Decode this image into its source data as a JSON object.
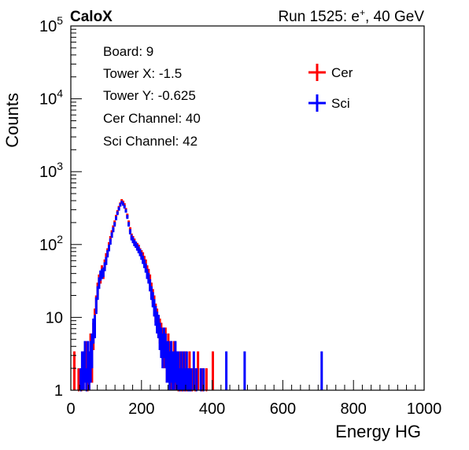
{
  "header": {
    "brand": "CaloX",
    "run_prefix": "Run 1525: e",
    "run_particle_sup": "+",
    "run_suffix": ", 40 GeV"
  },
  "info_box": {
    "lines": [
      "Board: 9",
      "Tower X: -1.5",
      "Tower Y: -0.625",
      "Cer Channel: 40",
      "Sci Channel: 42"
    ]
  },
  "colors": {
    "cer": "#ff0000",
    "sci": "#0000ff",
    "axis": "#000000"
  },
  "chart_data": {
    "type": "histogram",
    "xlabel": "Energy HG",
    "ylabel": "Counts",
    "xlim": [
      0,
      1000
    ],
    "ylim": [
      1,
      100000
    ],
    "yscale": "log",
    "x_ticks": [
      0,
      200,
      400,
      600,
      800,
      1000
    ],
    "x_tick_labels": [
      "0",
      "200",
      "400",
      "600",
      "800",
      "1000"
    ],
    "y_tick_labels": [
      {
        "base": "1",
        "exp": ""
      },
      {
        "base": "10",
        "exp": ""
      },
      {
        "base": "10",
        "exp": "2"
      },
      {
        "base": "10",
        "exp": "3"
      },
      {
        "base": "10",
        "exp": "4"
      },
      {
        "base": "10",
        "exp": "5"
      }
    ],
    "legend": {
      "position": "top-right",
      "entries": [
        {
          "name": "Cer",
          "color": "#ff0000"
        },
        {
          "name": "Sci",
          "color": "#0000ff"
        }
      ]
    },
    "series": [
      {
        "name": "Cer",
        "color": "#ff0000",
        "points": [
          [
            10,
            2
          ],
          [
            22,
            1
          ],
          [
            30,
            1
          ],
          [
            36,
            2
          ],
          [
            42,
            3
          ],
          [
            48,
            1
          ],
          [
            52,
            2
          ],
          [
            56,
            4
          ],
          [
            60,
            3
          ],
          [
            64,
            6
          ],
          [
            68,
            10
          ],
          [
            72,
            16
          ],
          [
            76,
            25
          ],
          [
            80,
            33
          ],
          [
            84,
            35
          ],
          [
            88,
            45
          ],
          [
            92,
            40
          ],
          [
            96,
            55
          ],
          [
            100,
            68
          ],
          [
            104,
            80
          ],
          [
            108,
            98
          ],
          [
            112,
            120
          ],
          [
            116,
            145
          ],
          [
            120,
            170
          ],
          [
            124,
            200
          ],
          [
            128,
            240
          ],
          [
            132,
            280
          ],
          [
            136,
            320
          ],
          [
            140,
            360
          ],
          [
            144,
            400
          ],
          [
            148,
            380
          ],
          [
            152,
            350
          ],
          [
            156,
            300
          ],
          [
            160,
            250
          ],
          [
            164,
            200
          ],
          [
            168,
            160
          ],
          [
            172,
            130
          ],
          [
            176,
            120
          ],
          [
            180,
            110
          ],
          [
            184,
            100
          ],
          [
            188,
            95
          ],
          [
            192,
            90
          ],
          [
            196,
            80
          ],
          [
            200,
            75
          ],
          [
            204,
            70
          ],
          [
            208,
            62
          ],
          [
            212,
            55
          ],
          [
            216,
            45
          ],
          [
            220,
            40
          ],
          [
            224,
            33
          ],
          [
            228,
            25
          ],
          [
            232,
            20
          ],
          [
            236,
            16
          ],
          [
            240,
            12
          ],
          [
            244,
            10
          ],
          [
            248,
            8
          ],
          [
            252,
            7
          ],
          [
            256,
            6
          ],
          [
            260,
            5
          ],
          [
            264,
            4
          ],
          [
            268,
            5
          ],
          [
            272,
            3
          ],
          [
            276,
            4
          ],
          [
            280,
            3
          ],
          [
            284,
            2
          ],
          [
            288,
            2
          ],
          [
            292,
            3
          ],
          [
            296,
            2
          ],
          [
            300,
            2
          ],
          [
            304,
            1
          ],
          [
            308,
            2
          ],
          [
            312,
            1
          ],
          [
            316,
            2
          ],
          [
            320,
            1
          ],
          [
            324,
            2
          ],
          [
            328,
            1
          ],
          [
            332,
            1
          ],
          [
            336,
            2
          ],
          [
            344,
            1
          ],
          [
            352,
            1
          ],
          [
            360,
            2
          ],
          [
            372,
            1
          ],
          [
            384,
            1
          ],
          [
            402,
            2
          ]
        ]
      },
      {
        "name": "Sci",
        "color": "#0000ff",
        "points": [
          [
            28,
            1
          ],
          [
            32,
            2
          ],
          [
            36,
            2
          ],
          [
            40,
            3
          ],
          [
            44,
            1
          ],
          [
            48,
            3
          ],
          [
            52,
            2
          ],
          [
            56,
            3
          ],
          [
            60,
            4
          ],
          [
            64,
            7
          ],
          [
            68,
            8
          ],
          [
            72,
            15
          ],
          [
            76,
            22
          ],
          [
            80,
            30
          ],
          [
            84,
            38
          ],
          [
            88,
            40
          ],
          [
            92,
            42
          ],
          [
            96,
            50
          ],
          [
            100,
            60
          ],
          [
            104,
            75
          ],
          [
            108,
            90
          ],
          [
            112,
            110
          ],
          [
            116,
            135
          ],
          [
            120,
            160
          ],
          [
            124,
            190
          ],
          [
            128,
            230
          ],
          [
            132,
            270
          ],
          [
            136,
            310
          ],
          [
            140,
            350
          ],
          [
            144,
            380
          ],
          [
            148,
            360
          ],
          [
            152,
            330
          ],
          [
            156,
            290
          ],
          [
            160,
            240
          ],
          [
            164,
            190
          ],
          [
            168,
            150
          ],
          [
            172,
            125
          ],
          [
            176,
            115
          ],
          [
            180,
            105
          ],
          [
            184,
            100
          ],
          [
            188,
            92
          ],
          [
            192,
            85
          ],
          [
            196,
            78
          ],
          [
            200,
            70
          ],
          [
            204,
            62
          ],
          [
            208,
            55
          ],
          [
            212,
            48
          ],
          [
            216,
            40
          ],
          [
            220,
            35
          ],
          [
            224,
            28
          ],
          [
            228,
            22
          ],
          [
            232,
            18
          ],
          [
            236,
            14
          ],
          [
            240,
            11
          ],
          [
            244,
            9
          ],
          [
            248,
            8
          ],
          [
            252,
            6
          ],
          [
            256,
            5
          ],
          [
            260,
            4
          ],
          [
            264,
            5
          ],
          [
            268,
            4
          ],
          [
            272,
            3
          ],
          [
            276,
            3
          ],
          [
            280,
            2
          ],
          [
            284,
            3
          ],
          [
            288,
            2
          ],
          [
            292,
            2
          ],
          [
            296,
            3
          ],
          [
            300,
            2
          ],
          [
            304,
            2
          ],
          [
            308,
            1
          ],
          [
            312,
            2
          ],
          [
            316,
            1
          ],
          [
            320,
            2
          ],
          [
            324,
            1
          ],
          [
            328,
            2
          ],
          [
            332,
            1
          ],
          [
            336,
            1
          ],
          [
            340,
            1
          ],
          [
            348,
            2
          ],
          [
            356,
            1
          ],
          [
            368,
            1
          ],
          [
            376,
            1
          ],
          [
            440,
            2
          ],
          [
            492,
            2
          ],
          [
            710,
            2
          ]
        ]
      }
    ]
  }
}
